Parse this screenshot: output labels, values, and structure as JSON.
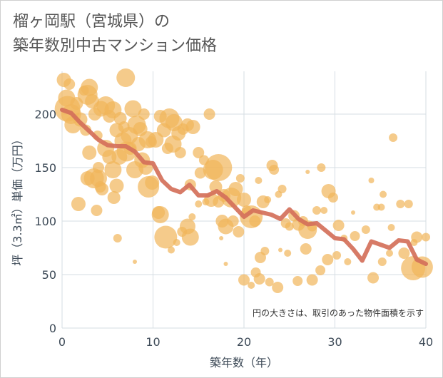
{
  "chart_data": {
    "type": "scatter",
    "title_line1": "榴ヶ岡駅（宮城県）の",
    "title_line2": "築年数別中古マンション価格",
    "xlabel": "築年数（年）",
    "ylabel": "坪（3.3㎡）単価（万円）",
    "xlim": [
      0,
      40
    ],
    "ylim": [
      0,
      240
    ],
    "x_ticks": [
      0,
      10,
      20,
      30,
      40
    ],
    "y_ticks": [
      0,
      50,
      100,
      150,
      200
    ],
    "annotation": "円の大きさは、取引のあった物件面積を示す",
    "grid": true,
    "colors": {
      "bubble": "#f1b55a",
      "line": "#d4705a",
      "grid": "#d6dde3",
      "plot_bg": "#ffffff"
    },
    "trend": {
      "x": [
        0,
        1,
        2,
        3,
        4,
        5,
        6,
        7,
        8,
        9,
        10,
        11,
        12,
        13,
        14,
        15,
        16,
        17,
        18,
        19,
        20,
        21,
        22,
        23,
        24,
        25,
        26,
        27,
        28,
        29,
        30,
        31,
        32,
        33,
        34,
        35,
        36,
        37,
        38,
        39,
        40
      ],
      "y": [
        204,
        201,
        192,
        184,
        176,
        171,
        170,
        170,
        165,
        155,
        154,
        138,
        130,
        127,
        134,
        124,
        124,
        128,
        122,
        113,
        104,
        110,
        108,
        106,
        102,
        111,
        102,
        97,
        98,
        91,
        84,
        83,
        74,
        63,
        81,
        78,
        75,
        82,
        81,
        64,
        60
      ]
    },
    "points": [
      {
        "x": 0.2,
        "y": 232,
        "r": 10
      },
      {
        "x": 0.5,
        "y": 215,
        "r": 12
      },
      {
        "x": 0.8,
        "y": 228,
        "r": 8
      },
      {
        "x": 1,
        "y": 200,
        "r": 14
      },
      {
        "x": 1.2,
        "y": 190,
        "r": 12
      },
      {
        "x": 0.6,
        "y": 205,
        "r": 18
      },
      {
        "x": 1.6,
        "y": 210,
        "r": 9
      },
      {
        "x": 2,
        "y": 195,
        "r": 10
      },
      {
        "x": 2.4,
        "y": 222,
        "r": 7
      },
      {
        "x": 2.8,
        "y": 218,
        "r": 14
      },
      {
        "x": 3,
        "y": 225,
        "r": 12
      },
      {
        "x": 3.3,
        "y": 212,
        "r": 10
      },
      {
        "x": 2.6,
        "y": 185,
        "r": 8
      },
      {
        "x": 3.6,
        "y": 200,
        "r": 9
      },
      {
        "x": 3.9,
        "y": 180,
        "r": 7
      },
      {
        "x": 4.3,
        "y": 205,
        "r": 11
      },
      {
        "x": 4.8,
        "y": 208,
        "r": 13
      },
      {
        "x": 5.2,
        "y": 198,
        "r": 9
      },
      {
        "x": 5.6,
        "y": 204,
        "r": 12
      },
      {
        "x": 6,
        "y": 185,
        "r": 10
      },
      {
        "x": 6.4,
        "y": 196,
        "r": 9
      },
      {
        "x": 6.8,
        "y": 188,
        "r": 8
      },
      {
        "x": 7,
        "y": 234,
        "r": 13
      },
      {
        "x": 7.4,
        "y": 180,
        "r": 12
      },
      {
        "x": 7.8,
        "y": 205,
        "r": 12
      },
      {
        "x": 8.2,
        "y": 190,
        "r": 13
      },
      {
        "x": 8.6,
        "y": 186,
        "r": 10
      },
      {
        "x": 9,
        "y": 200,
        "r": 8
      },
      {
        "x": 9.4,
        "y": 176,
        "r": 12
      },
      {
        "x": 9.8,
        "y": 174,
        "r": 8
      },
      {
        "x": 3,
        "y": 164,
        "r": 10
      },
      {
        "x": 3.5,
        "y": 140,
        "r": 14
      },
      {
        "x": 4,
        "y": 150,
        "r": 8
      },
      {
        "x": 4.4,
        "y": 130,
        "r": 9
      },
      {
        "x": 4.8,
        "y": 168,
        "r": 12
      },
      {
        "x": 5.2,
        "y": 160,
        "r": 10
      },
      {
        "x": 5.6,
        "y": 148,
        "r": 12
      },
      {
        "x": 6,
        "y": 133,
        "r": 10
      },
      {
        "x": 6.3,
        "y": 160,
        "r": 11
      },
      {
        "x": 6.7,
        "y": 175,
        "r": 12
      },
      {
        "x": 7.1,
        "y": 165,
        "r": 14
      },
      {
        "x": 7.5,
        "y": 168,
        "r": 9
      },
      {
        "x": 8,
        "y": 148,
        "r": 12
      },
      {
        "x": 8.4,
        "y": 172,
        "r": 10
      },
      {
        "x": 8.8,
        "y": 157,
        "r": 11
      },
      {
        "x": 9.2,
        "y": 150,
        "r": 10
      },
      {
        "x": 9.5,
        "y": 132,
        "r": 15
      },
      {
        "x": 9.9,
        "y": 136,
        "r": 10
      },
      {
        "x": 2.8,
        "y": 140,
        "r": 10
      },
      {
        "x": 4,
        "y": 140,
        "r": 12
      },
      {
        "x": 4.2,
        "y": 132,
        "r": 8
      },
      {
        "x": 1.8,
        "y": 116,
        "r": 10
      },
      {
        "x": 3.8,
        "y": 110,
        "r": 8
      },
      {
        "x": 5.7,
        "y": 122,
        "r": 9
      },
      {
        "x": 6.1,
        "y": 84,
        "r": 6
      },
      {
        "x": 10.3,
        "y": 176,
        "r": 11
      },
      {
        "x": 10.8,
        "y": 198,
        "r": 9
      },
      {
        "x": 11.2,
        "y": 185,
        "r": 10
      },
      {
        "x": 11.8,
        "y": 196,
        "r": 14
      },
      {
        "x": 12.3,
        "y": 192,
        "r": 12
      },
      {
        "x": 12.8,
        "y": 182,
        "r": 10
      },
      {
        "x": 13.3,
        "y": 186,
        "r": 8
      },
      {
        "x": 13.8,
        "y": 190,
        "r": 9
      },
      {
        "x": 14.4,
        "y": 188,
        "r": 10
      },
      {
        "x": 11.6,
        "y": 168,
        "r": 8
      },
      {
        "x": 12.2,
        "y": 172,
        "r": 12
      },
      {
        "x": 13,
        "y": 164,
        "r": 8
      },
      {
        "x": 15,
        "y": 164,
        "r": 8
      },
      {
        "x": 15.6,
        "y": 157,
        "r": 7
      },
      {
        "x": 16.2,
        "y": 200,
        "r": 8
      },
      {
        "x": 16.6,
        "y": 148,
        "r": 14
      },
      {
        "x": 17.2,
        "y": 150,
        "r": 19
      },
      {
        "x": 17.8,
        "y": 124,
        "r": 9
      },
      {
        "x": 16.9,
        "y": 132,
        "r": 9
      },
      {
        "x": 15.2,
        "y": 145,
        "r": 8
      },
      {
        "x": 14.1,
        "y": 134,
        "r": 8
      },
      {
        "x": 10.6,
        "y": 108,
        "r": 9
      },
      {
        "x": 10.8,
        "y": 106,
        "r": 12
      },
      {
        "x": 11.4,
        "y": 85,
        "r": 16
      },
      {
        "x": 12,
        "y": 73,
        "r": 5
      },
      {
        "x": 12.6,
        "y": 80,
        "r": 5
      },
      {
        "x": 13.2,
        "y": 90,
        "r": 7
      },
      {
        "x": 13.8,
        "y": 95,
        "r": 11
      },
      {
        "x": 14.1,
        "y": 85,
        "r": 12
      },
      {
        "x": 14.3,
        "y": 104,
        "r": 5
      },
      {
        "x": 15,
        "y": 116,
        "r": 5
      },
      {
        "x": 15.8,
        "y": 118,
        "r": 5
      },
      {
        "x": 16.4,
        "y": 120,
        "r": 10
      },
      {
        "x": 17.2,
        "y": 118,
        "r": 8
      },
      {
        "x": 17.6,
        "y": 100,
        "r": 9
      },
      {
        "x": 18,
        "y": 95,
        "r": 11
      },
      {
        "x": 18.6,
        "y": 122,
        "r": 14
      },
      {
        "x": 19.1,
        "y": 130,
        "r": 10
      },
      {
        "x": 19.6,
        "y": 140,
        "r": 6
      },
      {
        "x": 18.8,
        "y": 100,
        "r": 8
      },
      {
        "x": 19.4,
        "y": 90,
        "r": 8
      },
      {
        "x": 20,
        "y": 120,
        "r": 10
      },
      {
        "x": 20.3,
        "y": 110,
        "r": 7
      },
      {
        "x": 20.8,
        "y": 104,
        "r": 16
      },
      {
        "x": 21.2,
        "y": 100,
        "r": 8
      },
      {
        "x": 21.6,
        "y": 138,
        "r": 5
      },
      {
        "x": 22.1,
        "y": 118,
        "r": 9
      },
      {
        "x": 22.6,
        "y": 120,
        "r": 5
      },
      {
        "x": 23.1,
        "y": 152,
        "r": 8
      },
      {
        "x": 23.3,
        "y": 148,
        "r": 7
      },
      {
        "x": 23.8,
        "y": 125,
        "r": 5
      },
      {
        "x": 24.2,
        "y": 130,
        "r": 6
      },
      {
        "x": 24.6,
        "y": 98,
        "r": 7
      },
      {
        "x": 25,
        "y": 95,
        "r": 6
      },
      {
        "x": 25.5,
        "y": 105,
        "r": 8
      },
      {
        "x": 26,
        "y": 97,
        "r": 9
      },
      {
        "x": 26.5,
        "y": 100,
        "r": 7
      },
      {
        "x": 27,
        "y": 92,
        "r": 13
      },
      {
        "x": 27.5,
        "y": 95,
        "r": 7
      },
      {
        "x": 28,
        "y": 110,
        "r": 6
      },
      {
        "x": 28.5,
        "y": 150,
        "r": 6
      },
      {
        "x": 28.8,
        "y": 110,
        "r": 5
      },
      {
        "x": 29.3,
        "y": 128,
        "r": 10
      },
      {
        "x": 29.8,
        "y": 122,
        "r": 7
      },
      {
        "x": 30.4,
        "y": 96,
        "r": 8
      },
      {
        "x": 31,
        "y": 84,
        "r": 5
      },
      {
        "x": 20,
        "y": 45,
        "r": 8
      },
      {
        "x": 20.8,
        "y": 40,
        "r": 5
      },
      {
        "x": 21.3,
        "y": 52,
        "r": 7
      },
      {
        "x": 21.7,
        "y": 46,
        "r": 8
      },
      {
        "x": 21.8,
        "y": 66,
        "r": 8
      },
      {
        "x": 22.3,
        "y": 72,
        "r": 6
      },
      {
        "x": 22.8,
        "y": 43,
        "r": 6
      },
      {
        "x": 23.7,
        "y": 38,
        "r": 8
      },
      {
        "x": 24.8,
        "y": 70,
        "r": 5
      },
      {
        "x": 25.9,
        "y": 44,
        "r": 7
      },
      {
        "x": 26.8,
        "y": 74,
        "r": 8
      },
      {
        "x": 27.5,
        "y": 45,
        "r": 8
      },
      {
        "x": 28.4,
        "y": 54,
        "r": 7
      },
      {
        "x": 29.2,
        "y": 64,
        "r": 8
      },
      {
        "x": 30.2,
        "y": 68,
        "r": 6
      },
      {
        "x": 31.4,
        "y": 62,
        "r": 5
      },
      {
        "x": 32.2,
        "y": 86,
        "r": 7
      },
      {
        "x": 33.4,
        "y": 92,
        "r": 6
      },
      {
        "x": 34.2,
        "y": 47,
        "r": 8
      },
      {
        "x": 34.6,
        "y": 113,
        "r": 5
      },
      {
        "x": 35.1,
        "y": 113,
        "r": 5
      },
      {
        "x": 35.3,
        "y": 125,
        "r": 5
      },
      {
        "x": 36,
        "y": 70,
        "r": 5
      },
      {
        "x": 36.2,
        "y": 94,
        "r": 5
      },
      {
        "x": 36.4,
        "y": 178,
        "r": 6
      },
      {
        "x": 37.2,
        "y": 116,
        "r": 6
      },
      {
        "x": 37.6,
        "y": 70,
        "r": 8
      },
      {
        "x": 38.1,
        "y": 116,
        "r": 6
      },
      {
        "x": 38.7,
        "y": 80,
        "r": 5
      },
      {
        "x": 39,
        "y": 85,
        "r": 8
      },
      {
        "x": 38.6,
        "y": 56,
        "r": 17
      },
      {
        "x": 39.6,
        "y": 57,
        "r": 15
      },
      {
        "x": 40,
        "y": 85,
        "r": 6
      },
      {
        "x": 35.2,
        "y": 62,
        "r": 6
      },
      {
        "x": 34,
        "y": 138,
        "r": 4
      },
      {
        "x": 17.5,
        "y": 84,
        "r": 3
      },
      {
        "x": 8,
        "y": 62,
        "r": 3
      },
      {
        "x": 18,
        "y": 60,
        "r": 3
      },
      {
        "x": 27,
        "y": 146,
        "r": 3
      },
      {
        "x": 32,
        "y": 108,
        "r": 3
      },
      {
        "x": 24,
        "y": 73,
        "r": 3
      }
    ]
  }
}
